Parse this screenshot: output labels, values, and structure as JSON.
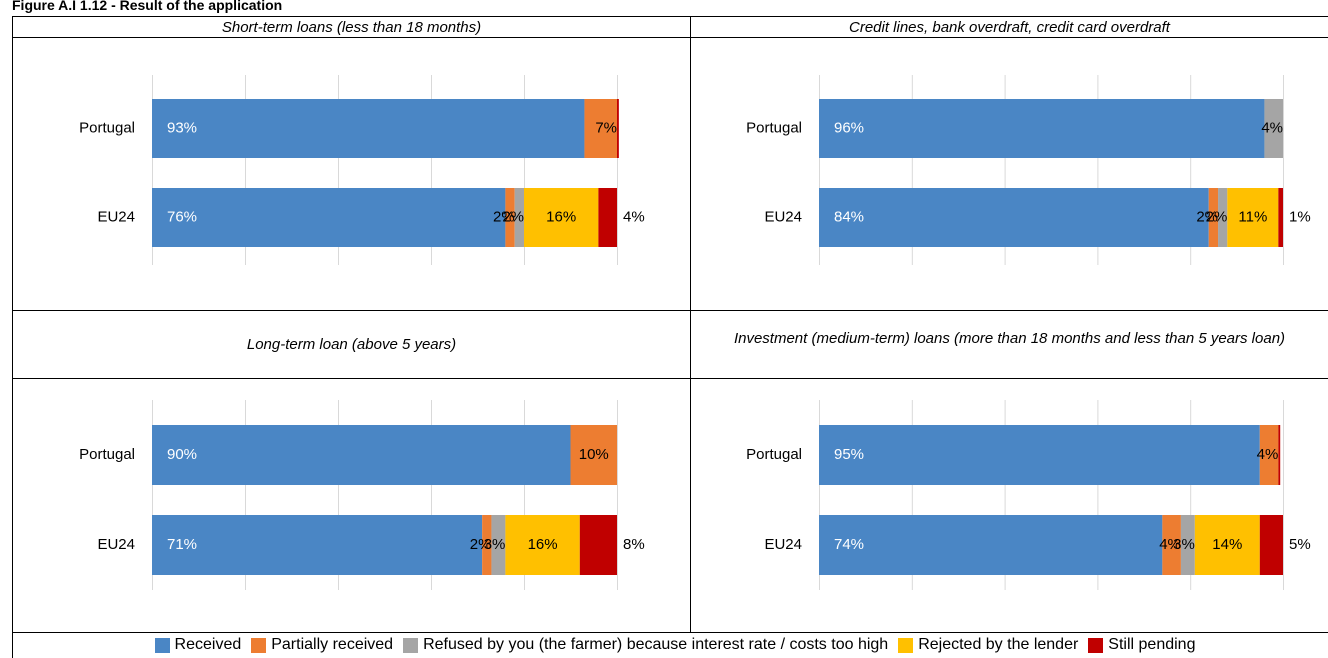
{
  "title": "Figure A.I 1.12 - Result of the application",
  "chart_data": [
    {
      "type": "bar",
      "title": "Short-term loans (less than 18 months)",
      "categories": [
        "Portugal",
        "EU24"
      ],
      "xlim": [
        0,
        100
      ],
      "xticks": [
        0,
        20,
        40,
        60,
        80,
        100
      ],
      "grid": true,
      "series": [
        {
          "name": "Received",
          "color": "#4a86c5",
          "values": [
            93,
            76
          ],
          "value_labels": [
            "93%",
            "76%"
          ]
        },
        {
          "name": "Partially received",
          "color": "#ed7d31",
          "values": [
            7,
            2
          ],
          "value_labels": [
            "7%",
            "2%"
          ]
        },
        {
          "name": "Refused by you (the farmer) because interest rate / costs too high",
          "color": "#a5a5a5",
          "values": [
            0,
            2
          ],
          "value_labels": [
            null,
            "2%"
          ]
        },
        {
          "name": "Rejected by the lender",
          "color": "#ffc000",
          "values": [
            0,
            16
          ],
          "value_labels": [
            null,
            "16%"
          ]
        },
        {
          "name": "Still pending",
          "color": "#c00000",
          "values": [
            0.4,
            4
          ],
          "value_labels": [
            null,
            "4%"
          ]
        }
      ]
    },
    {
      "type": "bar",
      "title": "Credit lines, bank overdraft, credit card overdraft",
      "categories": [
        "Portugal",
        "EU24"
      ],
      "xlim": [
        0,
        100
      ],
      "xticks": [
        0,
        20,
        40,
        60,
        80,
        100
      ],
      "grid": true,
      "series": [
        {
          "name": "Received",
          "color": "#4a86c5",
          "values": [
            96,
            84
          ],
          "value_labels": [
            "96%",
            "84%"
          ]
        },
        {
          "name": "Partially received",
          "color": "#ed7d31",
          "values": [
            0,
            2
          ],
          "value_labels": [
            null,
            "2%"
          ]
        },
        {
          "name": "Refused by you (the farmer) because interest rate / costs too high",
          "color": "#a5a5a5",
          "values": [
            4,
            2
          ],
          "value_labels": [
            "4%",
            "2%"
          ]
        },
        {
          "name": "Rejected by the lender",
          "color": "#ffc000",
          "values": [
            0,
            11
          ],
          "value_labels": [
            null,
            "11%"
          ]
        },
        {
          "name": "Still pending",
          "color": "#c00000",
          "values": [
            0,
            1
          ],
          "value_labels": [
            null,
            "1%"
          ]
        }
      ]
    },
    {
      "type": "bar",
      "title": "Long-term loan (above 5 years)",
      "categories": [
        "Portugal",
        "EU24"
      ],
      "xlim": [
        0,
        100
      ],
      "xticks": [
        0,
        20,
        40,
        60,
        80,
        100
      ],
      "grid": true,
      "series": [
        {
          "name": "Received",
          "color": "#4a86c5",
          "values": [
            90,
            71
          ],
          "value_labels": [
            "90%",
            "71%"
          ]
        },
        {
          "name": "Partially received",
          "color": "#ed7d31",
          "values": [
            10,
            2
          ],
          "value_labels": [
            "10%",
            "2%"
          ]
        },
        {
          "name": "Refused by you (the farmer) because interest rate / costs too high",
          "color": "#a5a5a5",
          "values": [
            0,
            3
          ],
          "value_labels": [
            null,
            "3%"
          ]
        },
        {
          "name": "Rejected by the lender",
          "color": "#ffc000",
          "values": [
            0,
            16
          ],
          "value_labels": [
            null,
            "16%"
          ]
        },
        {
          "name": "Still pending",
          "color": "#c00000",
          "values": [
            0,
            8
          ],
          "value_labels": [
            null,
            "8%"
          ]
        }
      ]
    },
    {
      "type": "bar",
      "title": "Investment (medium-term) loans (more than 18 months and less than 5 years loan)",
      "categories": [
        "Portugal",
        "EU24"
      ],
      "xlim": [
        0,
        100
      ],
      "xticks": [
        0,
        20,
        40,
        60,
        80,
        100
      ],
      "grid": true,
      "series": [
        {
          "name": "Received",
          "color": "#4a86c5",
          "values": [
            95,
            74
          ],
          "value_labels": [
            "95%",
            "74%"
          ]
        },
        {
          "name": "Partially received",
          "color": "#ed7d31",
          "values": [
            4,
            4
          ],
          "value_labels": [
            "4%",
            "4%"
          ]
        },
        {
          "name": "Refused by you (the farmer) because interest rate / costs too high",
          "color": "#a5a5a5",
          "values": [
            0,
            3
          ],
          "value_labels": [
            null,
            "3%"
          ]
        },
        {
          "name": "Rejected by the lender",
          "color": "#ffc000",
          "values": [
            0,
            14
          ],
          "value_labels": [
            null,
            "14%"
          ]
        },
        {
          "name": "Still pending",
          "color": "#c00000",
          "values": [
            0.4,
            5
          ],
          "value_labels": [
            null,
            "5%"
          ]
        }
      ]
    }
  ]
}
